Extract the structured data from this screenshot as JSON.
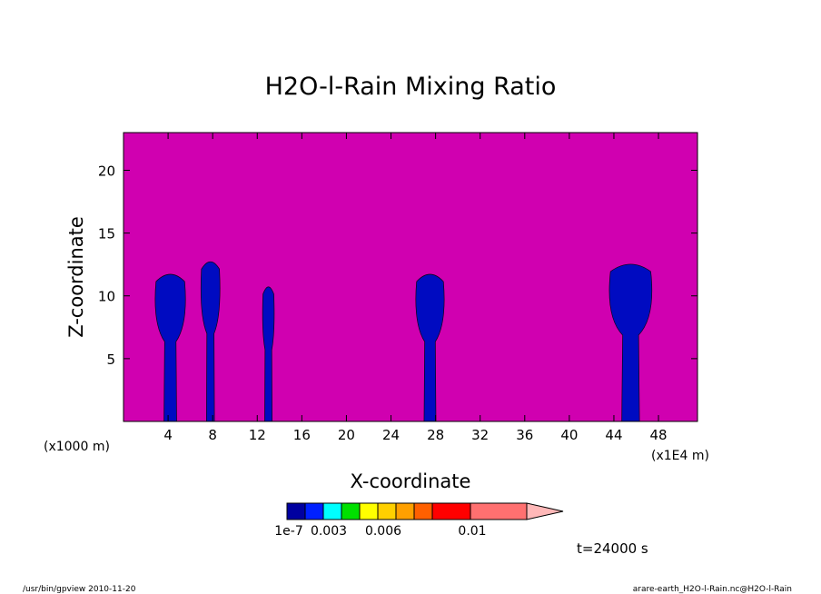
{
  "chart_data": {
    "type": "heatmap",
    "title": "H2O-l-Rain Mixing Ratio",
    "xlabel": "X-coordinate",
    "ylabel": "Z-coordinate",
    "x_unit_left": "(x1000 m)",
    "x_unit_right": "(x1E4 m)",
    "x_ticks": [
      4,
      8,
      12,
      16,
      20,
      24,
      28,
      32,
      36,
      40,
      44,
      48
    ],
    "y_ticks": [
      5,
      10,
      15,
      20
    ],
    "xlim": [
      0,
      51.5
    ],
    "ylim": [
      0,
      23
    ],
    "background_color": "#d000b0",
    "cloud_colors": [
      "#0000a0",
      "#0020ff"
    ],
    "colorbar": {
      "colors": [
        "#0000a0",
        "#0020ff",
        "#00ffff",
        "#00e000",
        "#ffff00",
        "#ffd000",
        "#ffa000",
        "#ff6000",
        "#ff0000",
        "#ff7070",
        "#ffb8b8"
      ],
      "labels": [
        "1e-7",
        "0.003",
        "0.006",
        "0.01"
      ]
    },
    "time_label": "t=24000 s",
    "cells": [
      {
        "x_center": 4.2,
        "width": 3.2,
        "top": 12.0
      },
      {
        "x_center": 7.8,
        "width": 2.0,
        "top": 13.0
      },
      {
        "x_center": 13.0,
        "width": 1.2,
        "top": 11.0
      },
      {
        "x_center": 27.5,
        "width": 3.0,
        "top": 12.0
      },
      {
        "x_center": 45.5,
        "width": 4.5,
        "top": 12.8
      }
    ]
  },
  "footer": {
    "left": "/usr/bin/gpview  2010-11-20",
    "right": "arare-earth_H2O-l-Rain.nc@H2O-l-Rain"
  }
}
